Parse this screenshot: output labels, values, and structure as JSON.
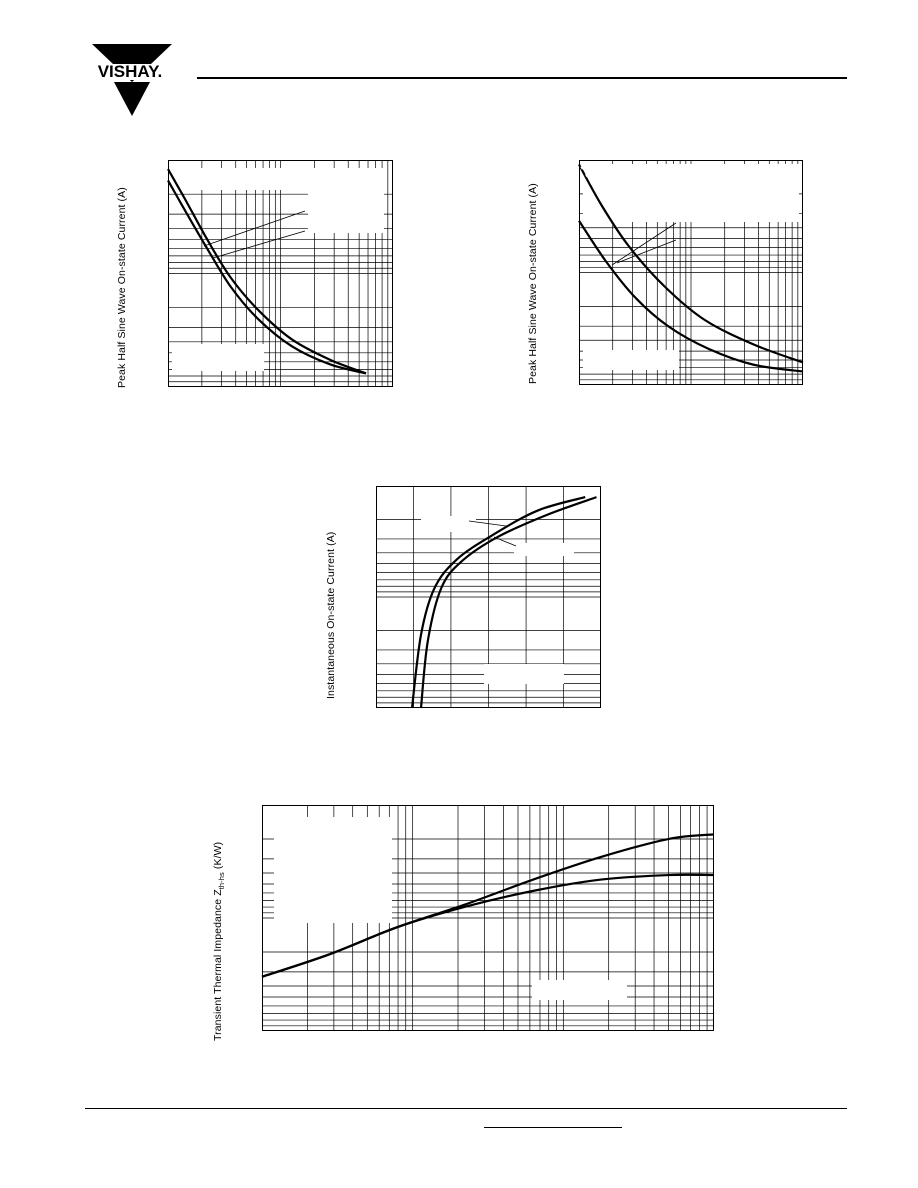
{
  "header": {
    "logo_text": "VISHAY."
  },
  "charts": {
    "peak_left": {
      "ylabel": "Peak Half Sine Wave On-state Current (A)"
    },
    "peak_right": {
      "ylabel": "Peak Half Sine Wave On-state Current (A)"
    },
    "instantaneous": {
      "ylabel": "Instantaneous On-state Current (A)"
    },
    "thermal": {
      "ylabel_main": "Transient Thermal Impedance Z",
      "ylabel_sub": "th-hs",
      "ylabel_unit": " (K/W)"
    }
  },
  "chart_data": [
    {
      "type": "line",
      "title": "",
      "xlabel": "",
      "ylabel": "Peak Half Sine Wave On-state Current (A)",
      "xscale": "log",
      "yscale": "log",
      "grid": true,
      "series": [
        {
          "values_relative": [
            [
              0.0,
              0.04
            ],
            [
              0.08,
              0.18
            ],
            [
              0.18,
              0.36
            ],
            [
              0.28,
              0.52
            ],
            [
              0.4,
              0.66
            ],
            [
              0.55,
              0.79
            ],
            [
              0.72,
              0.88
            ],
            [
              0.88,
              0.94
            ]
          ]
        },
        {
          "values_relative": [
            [
              0.0,
              0.09
            ],
            [
              0.08,
              0.23
            ],
            [
              0.18,
              0.4
            ],
            [
              0.28,
              0.56
            ],
            [
              0.4,
              0.7
            ],
            [
              0.55,
              0.82
            ],
            [
              0.72,
              0.9
            ],
            [
              0.88,
              0.94
            ]
          ]
        }
      ]
    },
    {
      "type": "line",
      "title": "",
      "xlabel": "",
      "ylabel": "Peak Half Sine Wave On-state Current (A)",
      "xscale": "log",
      "yscale": "log",
      "grid": true,
      "series": [
        {
          "values_relative": [
            [
              0.0,
              0.27
            ],
            [
              0.12,
              0.45
            ],
            [
              0.25,
              0.61
            ],
            [
              0.4,
              0.74
            ],
            [
              0.58,
              0.84
            ],
            [
              0.78,
              0.91
            ],
            [
              1.0,
              0.94
            ]
          ]
        },
        {
          "values_relative": [
            [
              0.0,
              0.02
            ],
            [
              0.1,
              0.2
            ],
            [
              0.22,
              0.38
            ],
            [
              0.38,
              0.56
            ],
            [
              0.56,
              0.71
            ],
            [
              0.78,
              0.82
            ],
            [
              1.0,
              0.9
            ]
          ]
        }
      ]
    },
    {
      "type": "line",
      "title": "",
      "xlabel": "",
      "ylabel": "Instantaneous On-state Current (A)",
      "yscale": "log",
      "grid": true,
      "series": [
        {
          "values_relative": [
            [
              0.16,
              1.0
            ],
            [
              0.2,
              0.67
            ],
            [
              0.26,
              0.46
            ],
            [
              0.36,
              0.33
            ],
            [
              0.52,
              0.22
            ],
            [
              0.72,
              0.11
            ],
            [
              0.93,
              0.05
            ]
          ]
        },
        {
          "values_relative": [
            [
              0.2,
              1.0
            ],
            [
              0.23,
              0.7
            ],
            [
              0.29,
              0.46
            ],
            [
              0.38,
              0.34
            ],
            [
              0.54,
              0.23
            ],
            [
              0.76,
              0.13
            ],
            [
              0.98,
              0.05
            ]
          ]
        }
      ]
    },
    {
      "type": "line",
      "title": "",
      "xlabel": "",
      "ylabel": "Transient Thermal Impedance Zth-hs (K/W)",
      "xscale": "log",
      "yscale": "log",
      "grid": true,
      "series": [
        {
          "values_relative": [
            [
              0.0,
              0.76
            ],
            [
              0.15,
              0.66
            ],
            [
              0.3,
              0.54
            ],
            [
              0.45,
              0.44
            ],
            [
              0.6,
              0.33
            ],
            [
              0.75,
              0.23
            ],
            [
              0.9,
              0.15
            ],
            [
              1.0,
              0.13
            ]
          ]
        },
        {
          "values_relative": [
            [
              0.0,
              0.76
            ],
            [
              0.15,
              0.66
            ],
            [
              0.3,
              0.54
            ],
            [
              0.45,
              0.45
            ],
            [
              0.6,
              0.38
            ],
            [
              0.75,
              0.33
            ],
            [
              0.9,
              0.31
            ],
            [
              1.0,
              0.31
            ]
          ]
        }
      ]
    }
  ]
}
